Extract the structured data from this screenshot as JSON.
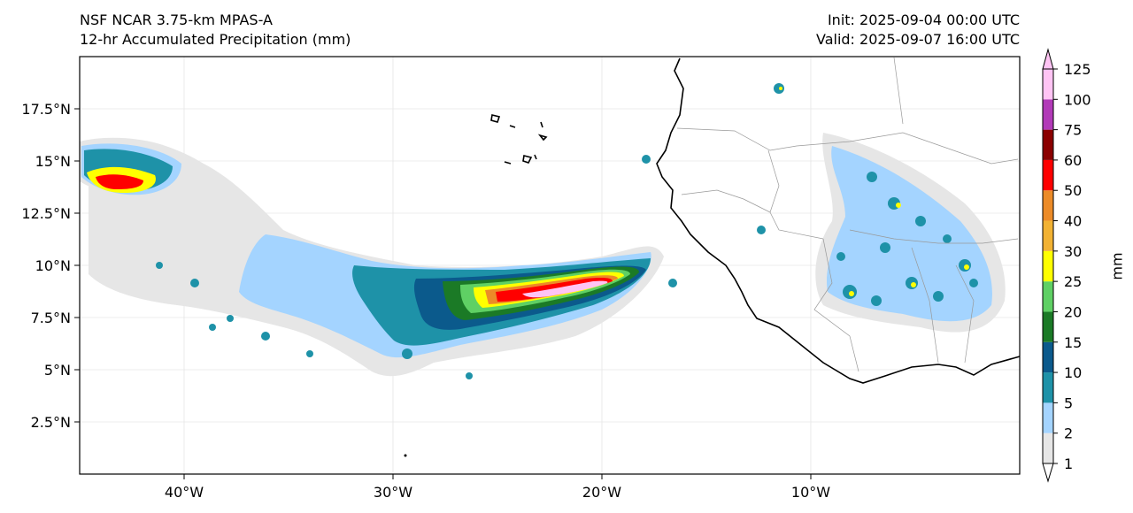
{
  "header": {
    "model": "NSF NCAR 3.75-km MPAS-A",
    "field": "12-hr Accumulated Precipitation (mm)",
    "init": "Init: 2025-09-04 00:00 UTC",
    "valid": "Valid: 2025-09-07 16:00 UTC"
  },
  "map": {
    "lon_range": [
      -45,
      0
    ],
    "lat_range": [
      0,
      20
    ],
    "lon_ticks": [
      {
        "value": -40,
        "label": "40°W"
      },
      {
        "value": -30,
        "label": "30°W"
      },
      {
        "value": -20,
        "label": "20°W"
      },
      {
        "value": -10,
        "label": "10°W"
      }
    ],
    "lat_ticks": [
      {
        "value": 2.5,
        "label": "2.5°N"
      },
      {
        "value": 5,
        "label": "5°N"
      },
      {
        "value": 7.5,
        "label": "7.5°N"
      },
      {
        "value": 10,
        "label": "10°N"
      },
      {
        "value": 12.5,
        "label": "12.5°N"
      },
      {
        "value": 15,
        "label": "15°N"
      },
      {
        "value": 17.5,
        "label": "17.5°N"
      }
    ]
  },
  "colorbar": {
    "unit_label": "mm",
    "levels": [
      "1",
      "2",
      "5",
      "10",
      "15",
      "20",
      "25",
      "30",
      "40",
      "50",
      "60",
      "75",
      "100",
      "125"
    ],
    "colors": [
      "#e6e6e6",
      "#a4d4ff",
      "#1e92a8",
      "#0b5a8c",
      "#1b7a26",
      "#5fd064",
      "#ffff00",
      "#f2b233",
      "#ec8b28",
      "#ff0000",
      "#8b0000",
      "#b23ab8",
      "#ffc4f4"
    ]
  }
}
